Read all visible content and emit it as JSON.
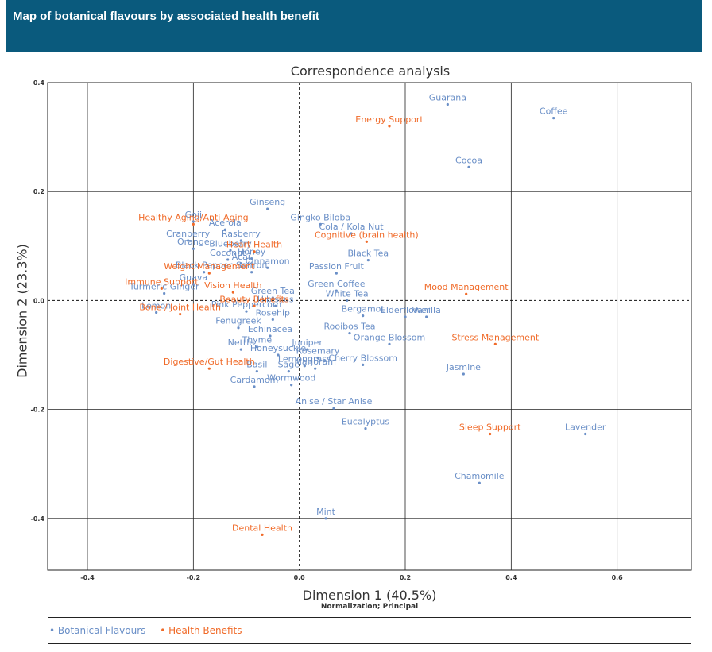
{
  "header": {
    "title": "Map of botanical flavours by associated health benefit"
  },
  "chart_data": {
    "type": "scatter",
    "title": "Correspondence analysis",
    "xlabel": "Dimension 1 (40.5%)",
    "xsublabel": "Normalization; Principal",
    "ylabel": "Dimension 2 (23.3%)",
    "xlim": [
      -0.475,
      0.74
    ],
    "ylim": [
      -0.495,
      0.4
    ],
    "xticks": [
      -0.4,
      -0.2,
      0.0,
      0.2,
      0.4,
      0.6
    ],
    "xtick_labels": [
      "-0.4",
      "-0.2",
      "0.0",
      "0.2",
      "0.4",
      "0.6"
    ],
    "yticks": [
      0.4,
      0.2,
      0.0,
      -0.2,
      -0.4
    ],
    "ytick_labels": [
      "0.4",
      "0.2",
      "0.0",
      "-0.2",
      "-0.4"
    ],
    "grid": true,
    "colors": {
      "botanical": "#6a8fc7",
      "health": "#f06a28"
    },
    "legend": [
      "Botanical Flavours",
      "Health Benefits"
    ],
    "series": [
      {
        "name": "Botanical Flavours",
        "points": [
          {
            "label": "Guarana",
            "x": 0.28,
            "y": 0.36
          },
          {
            "label": "Coffee",
            "x": 0.48,
            "y": 0.335
          },
          {
            "label": "Cocoa",
            "x": 0.32,
            "y": 0.245
          },
          {
            "label": "Ginseng",
            "x": -0.06,
            "y": 0.168
          },
          {
            "label": "Gingko Biloba",
            "x": 0.04,
            "y": 0.14
          },
          {
            "label": "Goji",
            "x": -0.2,
            "y": 0.145
          },
          {
            "label": "Acerola",
            "x": -0.14,
            "y": 0.13
          },
          {
            "label": "Rasberry",
            "x": -0.11,
            "y": 0.11
          },
          {
            "label": "Cranberry",
            "x": -0.21,
            "y": 0.11
          },
          {
            "label": "Blueberry",
            "x": -0.13,
            "y": 0.092
          },
          {
            "label": "Orange",
            "x": -0.2,
            "y": 0.095
          },
          {
            "label": "Cola / Kola Nut",
            "x": 0.098,
            "y": 0.123
          },
          {
            "label": "Black Tea",
            "x": 0.13,
            "y": 0.074
          },
          {
            "label": "Honey",
            "x": -0.09,
            "y": 0.077
          },
          {
            "label": "Coconut",
            "x": -0.135,
            "y": 0.075
          },
          {
            "label": "Acai",
            "x": -0.11,
            "y": 0.068
          },
          {
            "label": "Cinnamon",
            "x": -0.06,
            "y": 0.06
          },
          {
            "label": "Passion Fruit",
            "x": 0.07,
            "y": 0.05
          },
          {
            "label": "Black Pepper",
            "x": -0.18,
            "y": 0.052
          },
          {
            "label": "Saffron",
            "x": -0.09,
            "y": 0.052
          },
          {
            "label": "Green Coffee",
            "x": 0.07,
            "y": 0.018
          },
          {
            "label": "Guava",
            "x": -0.2,
            "y": 0.03
          },
          {
            "label": "Green Tea",
            "x": -0.05,
            "y": 0.005
          },
          {
            "label": "Turmeric Ginger",
            "x": -0.255,
            "y": 0.013
          },
          {
            "label": "White Tea",
            "x": 0.09,
            "y": 0.0
          },
          {
            "label": "Hibiscus",
            "x": -0.045,
            "y": -0.01
          },
          {
            "label": "Lemon",
            "x": -0.27,
            "y": -0.022
          },
          {
            "label": "Bergamot",
            "x": 0.12,
            "y": -0.028
          },
          {
            "label": "Pink Peppercorn",
            "x": -0.1,
            "y": -0.02
          },
          {
            "label": "Vanilla",
            "x": 0.24,
            "y": -0.03
          },
          {
            "label": "Rosehip",
            "x": -0.05,
            "y": -0.035
          },
          {
            "label": "Elderflower",
            "x": 0.2,
            "y": -0.03
          },
          {
            "label": "Rooibos Tea",
            "x": 0.095,
            "y": -0.06
          },
          {
            "label": "Fenugreek",
            "x": -0.115,
            "y": -0.05
          },
          {
            "label": "Echinacea",
            "x": -0.055,
            "y": -0.065
          },
          {
            "label": "Thyme",
            "x": -0.08,
            "y": -0.085
          },
          {
            "label": "Juniper",
            "x": 0.015,
            "y": -0.09
          },
          {
            "label": "Orange Blossom",
            "x": 0.17,
            "y": -0.08
          },
          {
            "label": "Nettle",
            "x": -0.11,
            "y": -0.09
          },
          {
            "label": "Honeysuckle",
            "x": -0.04,
            "y": -0.1
          },
          {
            "label": "Rosemary",
            "x": 0.035,
            "y": -0.105
          },
          {
            "label": "Lemongrass",
            "x": 0.01,
            "y": -0.12
          },
          {
            "label": "Cherry Blossom",
            "x": 0.12,
            "y": -0.118
          },
          {
            "label": "Jasmine",
            "x": 0.31,
            "y": -0.135
          },
          {
            "label": "Basil",
            "x": -0.08,
            "y": -0.13
          },
          {
            "label": "Sage",
            "x": -0.02,
            "y": -0.13
          },
          {
            "label": "Marjoram",
            "x": 0.03,
            "y": -0.125
          },
          {
            "label": "Cardamom",
            "x": -0.085,
            "y": -0.158
          },
          {
            "label": "Wormwood",
            "x": -0.015,
            "y": -0.155
          },
          {
            "label": "Anise / Star Anise",
            "x": 0.065,
            "y": -0.198
          },
          {
            "label": "Eucalyptus",
            "x": 0.125,
            "y": -0.235
          },
          {
            "label": "Lavender",
            "x": 0.54,
            "y": -0.245
          },
          {
            "label": "Chamomile",
            "x": 0.34,
            "y": -0.335
          },
          {
            "label": "Mint",
            "x": 0.05,
            "y": -0.4
          }
        ]
      },
      {
        "name": "Health Benefits",
        "points": [
          {
            "label": "Energy Support",
            "x": 0.17,
            "y": 0.32
          },
          {
            "label": "Healthy Aging/Anti-Aging",
            "x": -0.2,
            "y": 0.14
          },
          {
            "label": "Cognitive (brain health)",
            "x": 0.127,
            "y": 0.108
          },
          {
            "label": "Heart Health",
            "x": -0.085,
            "y": 0.09
          },
          {
            "label": "Weight Management",
            "x": -0.17,
            "y": 0.05
          },
          {
            "label": "Mood Management",
            "x": 0.315,
            "y": 0.012
          },
          {
            "label": "Immune Support",
            "x": -0.26,
            "y": 0.022
          },
          {
            "label": "Vision Health",
            "x": -0.125,
            "y": 0.015
          },
          {
            "label": "Beauty Benefits",
            "x": -0.085,
            "y": -0.01
          },
          {
            "label": "Bone / Joint Health",
            "x": -0.225,
            "y": -0.025
          },
          {
            "label": "Stress Management",
            "x": 0.37,
            "y": -0.08
          },
          {
            "label": "Digestive/Gut Health",
            "x": -0.17,
            "y": -0.125
          },
          {
            "label": "Sleep Support",
            "x": 0.36,
            "y": -0.245
          },
          {
            "label": "Dental  Health",
            "x": -0.07,
            "y": -0.43
          }
        ]
      }
    ]
  }
}
